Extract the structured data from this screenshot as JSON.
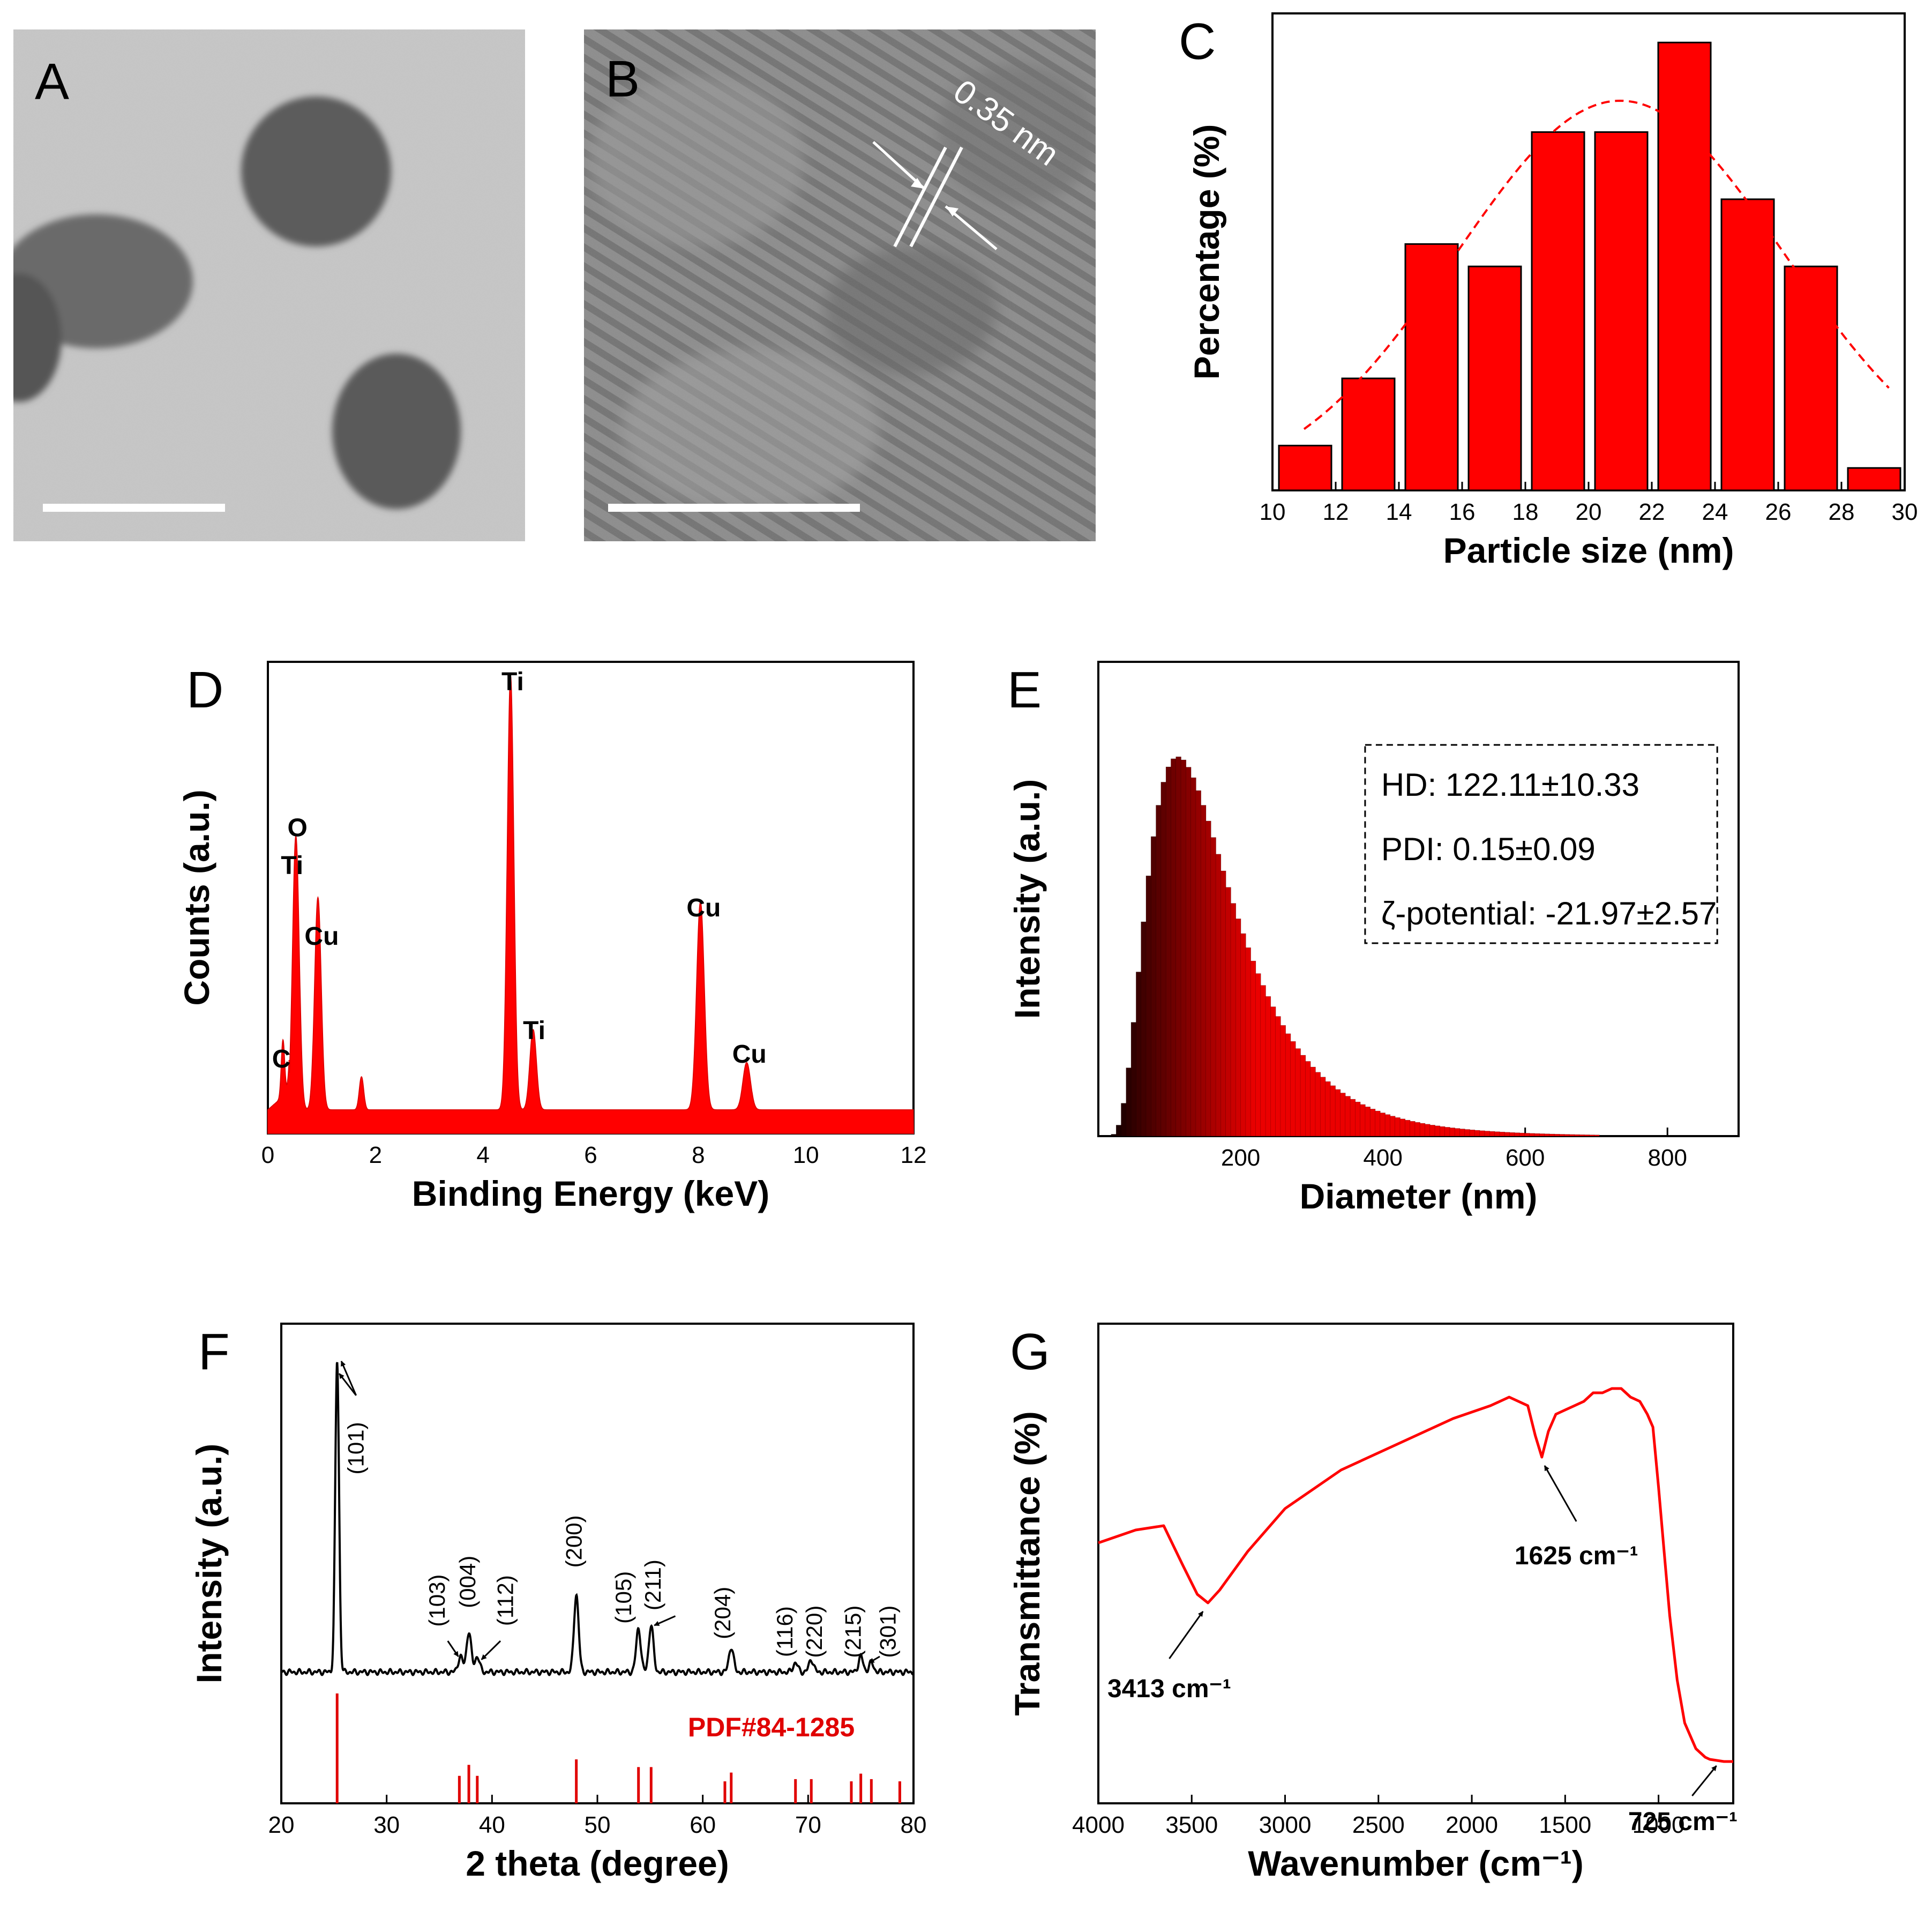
{
  "panels": {
    "A": {
      "letter": "A"
    },
    "B": {
      "letter": "B",
      "lattice_label": "0.35 nm"
    }
  },
  "chart_data": [
    {
      "id": "C",
      "type": "bar",
      "letter": "C",
      "xlabel": "Particle size (nm)",
      "ylabel": "Percentage (%)",
      "xlim": [
        10,
        30
      ],
      "ylim": [
        0,
        20
      ],
      "xticks": [
        10,
        12,
        14,
        16,
        18,
        20,
        22,
        24,
        26,
        28,
        30
      ],
      "bins": [
        {
          "from": 10,
          "to": 12,
          "value": 2
        },
        {
          "from": 12,
          "to": 14,
          "value": 5
        },
        {
          "from": 14,
          "to": 16,
          "value": 11
        },
        {
          "from": 16,
          "to": 18,
          "value": 10
        },
        {
          "from": 18,
          "to": 20,
          "value": 16
        },
        {
          "from": 20,
          "to": 22,
          "value": 16
        },
        {
          "from": 22,
          "to": 24,
          "value": 20
        },
        {
          "from": 24,
          "to": 26,
          "value": 13
        },
        {
          "from": 26,
          "to": 28,
          "value": 10
        },
        {
          "from": 28,
          "to": 30,
          "value": 1
        }
      ],
      "fit": {
        "type": "gaussian",
        "mean": 21,
        "sigma": 5.2,
        "peak": 17.4,
        "from": 11,
        "to": 29.6
      }
    },
    {
      "id": "D",
      "type": "line",
      "letter": "D",
      "xlabel": "Binding Energy (keV)",
      "ylabel": "Counts (a.u.)",
      "xlim": [
        0,
        12
      ],
      "ylim": [
        0,
        100
      ],
      "xticks": [
        0,
        2,
        4,
        6,
        8,
        10,
        12
      ],
      "baseline": 5,
      "peaks": [
        {
          "label": "C",
          "x": 0.28,
          "y": 12,
          "w": 0.03
        },
        {
          "label": "O Ti",
          "x": 0.52,
          "y": 58,
          "w": 0.06
        },
        {
          "label": "Cu",
          "x": 0.93,
          "y": 45,
          "w": 0.06
        },
        {
          "label": "",
          "x": 1.74,
          "y": 7,
          "w": 0.04
        },
        {
          "label": "Ti",
          "x": 4.51,
          "y": 92,
          "w": 0.06
        },
        {
          "label": "Ti",
          "x": 4.93,
          "y": 17,
          "w": 0.06
        },
        {
          "label": "Cu",
          "x": 8.04,
          "y": 44,
          "w": 0.07
        },
        {
          "label": "Cu",
          "x": 8.9,
          "y": 10,
          "w": 0.07
        }
      ],
      "labels": [
        {
          "text": "C",
          "x": 0.25,
          "y": 14
        },
        {
          "text": "O",
          "x": 0.55,
          "y": 63
        },
        {
          "text": "Ti",
          "x": 0.45,
          "y": 55
        },
        {
          "text": "Cu",
          "x": 1.0,
          "y": 40
        },
        {
          "text": "Ti",
          "x": 4.55,
          "y": 94
        },
        {
          "text": "Ti",
          "x": 4.95,
          "y": 20
        },
        {
          "text": "Cu",
          "x": 8.1,
          "y": 46
        },
        {
          "text": "Cu",
          "x": 8.95,
          "y": 15
        }
      ]
    },
    {
      "id": "E",
      "type": "bar",
      "letter": "E",
      "xlabel": "Diameter (nm)",
      "ylabel": "Intensity (a.u.)",
      "xlim": [
        0,
        900
      ],
      "ylim": [
        0,
        100
      ],
      "xticks": [
        200,
        400,
        600,
        800
      ],
      "distribution": {
        "type": "lognormal",
        "mode": 108,
        "sigma": 0.55,
        "peak": 80
      },
      "info": [
        "HD: 122.11±10.33",
        "PDI: 0.15±0.09",
        "ζ-potential: -21.97±2.57"
      ]
    },
    {
      "id": "F",
      "type": "line",
      "letter": "F",
      "xlabel": "2 theta (degree)",
      "ylabel": "Intensity (a.u.)",
      "xlim": [
        20,
        80
      ],
      "xticks": [
        20,
        30,
        40,
        50,
        60,
        70,
        80
      ],
      "peaks": [
        {
          "hkl": "(101)",
          "x": 25.3,
          "y": 100
        },
        {
          "hkl": "(103)",
          "x": 37.0,
          "y": 5
        },
        {
          "hkl": "(004)",
          "x": 37.8,
          "y": 13
        },
        {
          "hkl": "(112)",
          "x": 38.6,
          "y": 5
        },
        {
          "hkl": "(200)",
          "x": 48.0,
          "y": 25
        },
        {
          "hkl": "(105)",
          "x": 53.9,
          "y": 14
        },
        {
          "hkl": "(211)",
          "x": 55.1,
          "y": 15
        },
        {
          "hkl": "(204)",
          "x": 62.7,
          "y": 8
        },
        {
          "hkl": "(116)",
          "x": 68.8,
          "y": 3
        },
        {
          "hkl": "(220)",
          "x": 70.3,
          "y": 4
        },
        {
          "hkl": "(215)",
          "x": 75.0,
          "y": 5
        },
        {
          "hkl": "(301)",
          "x": 76.0,
          "y": 3
        }
      ],
      "reference": {
        "label": "PDF#84-1285",
        "lines": [
          {
            "x": 25.3,
            "h": 100
          },
          {
            "x": 36.9,
            "h": 25
          },
          {
            "x": 37.8,
            "h": 35
          },
          {
            "x": 38.6,
            "h": 25
          },
          {
            "x": 48.0,
            "h": 40
          },
          {
            "x": 53.9,
            "h": 33
          },
          {
            "x": 55.1,
            "h": 33
          },
          {
            "x": 62.1,
            "h": 20
          },
          {
            "x": 62.7,
            "h": 28
          },
          {
            "x": 68.8,
            "h": 22
          },
          {
            "x": 70.3,
            "h": 22
          },
          {
            "x": 74.1,
            "h": 20
          },
          {
            "x": 75.0,
            "h": 27
          },
          {
            "x": 76.0,
            "h": 22
          },
          {
            "x": 78.7,
            "h": 20
          }
        ]
      }
    },
    {
      "id": "G",
      "type": "line",
      "letter": "G",
      "xlabel": "Wavenumber (cm⁻¹)",
      "ylabel": "Transmittance (%)",
      "xlim": [
        4000,
        600
      ],
      "ylim": [
        0,
        100
      ],
      "xticks": [
        4000,
        3500,
        3000,
        2500,
        2000,
        1500,
        1000
      ],
      "series": [
        [
          4000,
          57
        ],
        [
          3800,
          60
        ],
        [
          3650,
          61
        ],
        [
          3550,
          52
        ],
        [
          3470,
          45
        ],
        [
          3413,
          43
        ],
        [
          3350,
          46
        ],
        [
          3200,
          55
        ],
        [
          3000,
          65
        ],
        [
          2700,
          74
        ],
        [
          2400,
          80
        ],
        [
          2100,
          86
        ],
        [
          1900,
          89
        ],
        [
          1800,
          91
        ],
        [
          1700,
          89
        ],
        [
          1660,
          82
        ],
        [
          1625,
          77
        ],
        [
          1590,
          83
        ],
        [
          1550,
          87
        ],
        [
          1500,
          88
        ],
        [
          1450,
          89
        ],
        [
          1400,
          90
        ],
        [
          1350,
          92
        ],
        [
          1300,
          92
        ],
        [
          1250,
          93
        ],
        [
          1200,
          93
        ],
        [
          1150,
          91
        ],
        [
          1100,
          90
        ],
        [
          1060,
          87
        ],
        [
          1030,
          84
        ],
        [
          1000,
          70
        ],
        [
          970,
          55
        ],
        [
          940,
          40
        ],
        [
          900,
          25
        ],
        [
          860,
          15
        ],
        [
          800,
          9
        ],
        [
          750,
          7
        ],
        [
          725,
          6.5
        ],
        [
          650,
          6
        ],
        [
          600,
          6
        ]
      ],
      "annotations": [
        {
          "label": "3413 cm⁻¹",
          "x": 3413
        },
        {
          "label": "1625 cm⁻¹",
          "x": 1625
        },
        {
          "label": "725 cm⁻¹",
          "x": 725
        }
      ]
    }
  ]
}
